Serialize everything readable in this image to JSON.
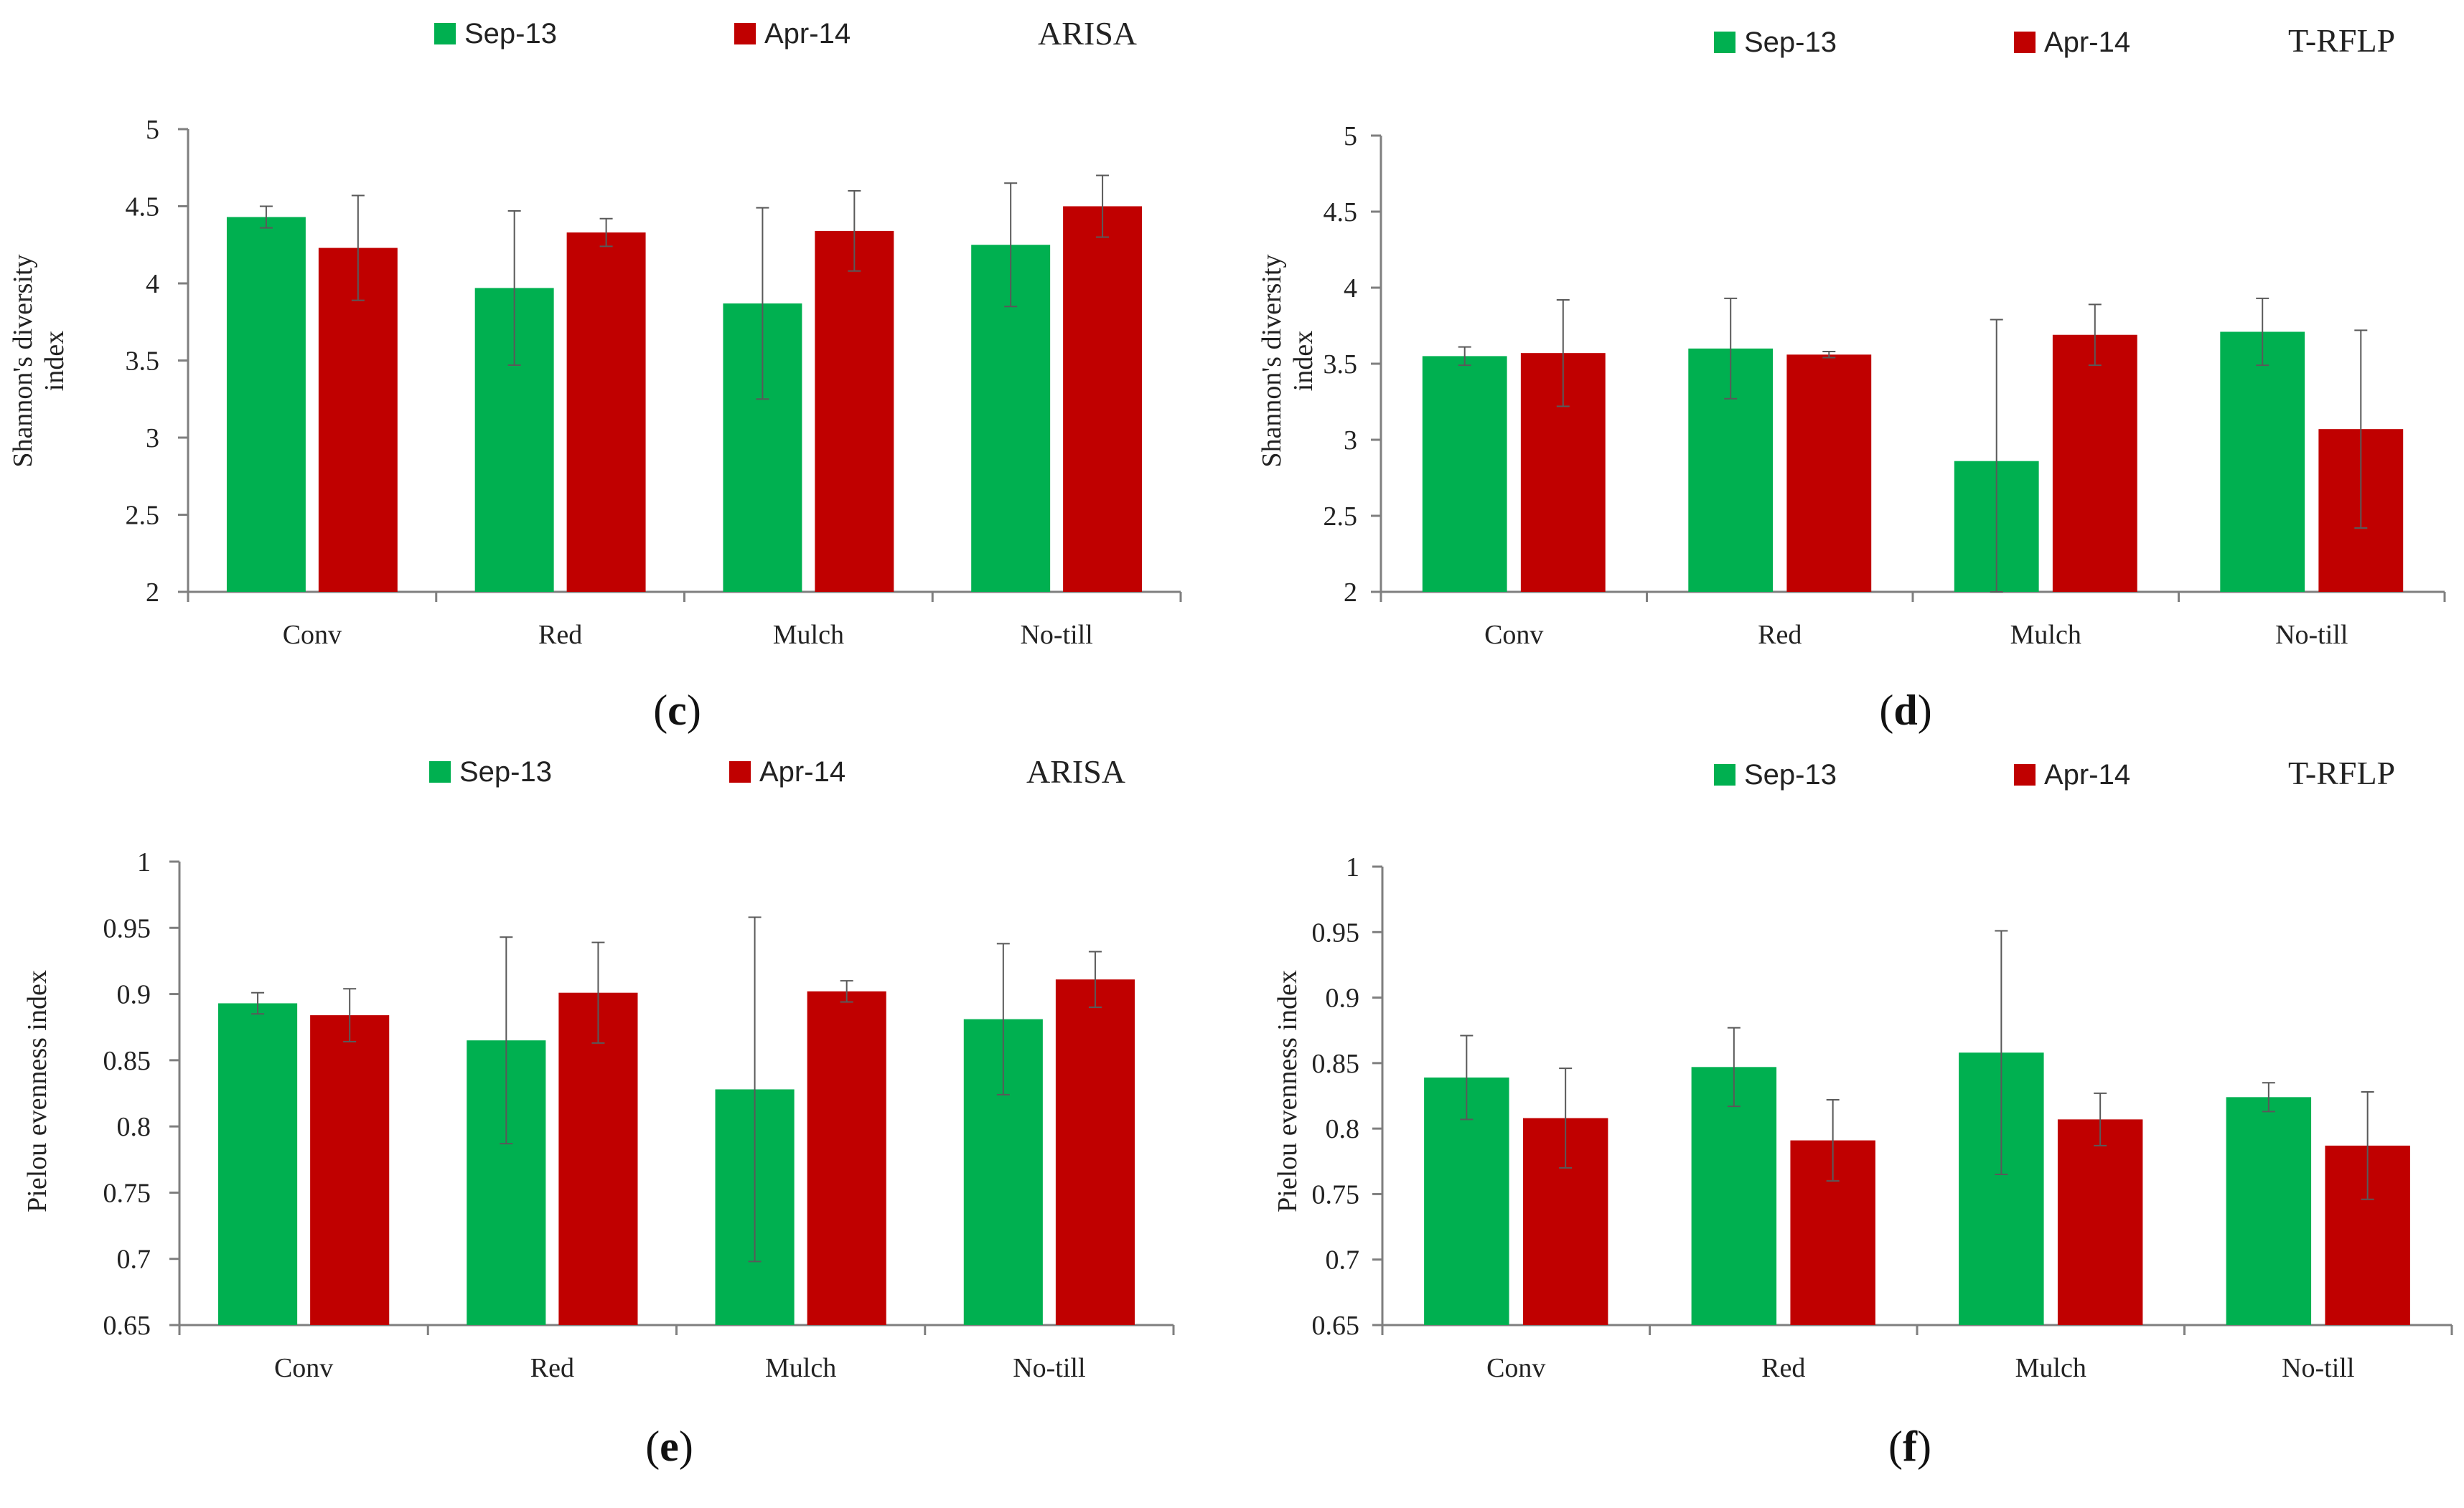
{
  "colors": {
    "sep": "#00b050",
    "apr": "#c00000",
    "axis": "#7f7f7f",
    "error": "#595959"
  },
  "chart_data": [
    {
      "id": "c",
      "type": "bar",
      "method": "ARISA",
      "caption": "c",
      "ylabel": [
        "Shannon's diversity",
        "index"
      ],
      "ylim": [
        2,
        5
      ],
      "ticks": [
        "2",
        "2.5",
        "3",
        "3.5",
        "4",
        "4.5",
        "5"
      ],
      "categories": [
        "Conv",
        "Red",
        "Mulch",
        "No-till"
      ],
      "series": [
        {
          "name": "Sep-13",
          "values": [
            4.43,
            3.97,
            3.87,
            4.25
          ],
          "errors": [
            0.07,
            0.5,
            0.62,
            0.4
          ]
        },
        {
          "name": "Apr-14",
          "values": [
            4.23,
            4.33,
            4.34,
            4.5
          ],
          "errors": [
            0.34,
            0.09,
            0.26,
            0.2
          ]
        }
      ]
    },
    {
      "id": "d",
      "type": "bar",
      "method": "T-RFLP",
      "caption": "d",
      "ylabel": [
        "Shannon's diversity",
        "index"
      ],
      "ylim": [
        2,
        5
      ],
      "ticks": [
        "2",
        "2.5",
        "3",
        "3.5",
        "4",
        "4.5",
        "5"
      ],
      "categories": [
        "Conv",
        "Red",
        "Mulch",
        "No-till"
      ],
      "series": [
        {
          "name": "Sep-13",
          "values": [
            3.55,
            3.6,
            2.86,
            3.71
          ],
          "errors": [
            0.06,
            0.33,
            0.93,
            0.22
          ]
        },
        {
          "name": "Apr-14",
          "values": [
            3.57,
            3.56,
            3.69,
            3.07
          ],
          "errors": [
            0.35,
            0.02,
            0.2,
            0.65
          ]
        }
      ]
    },
    {
      "id": "e",
      "type": "bar",
      "method": "ARISA",
      "caption": "e",
      "ylabel": [
        "Pielou evenness index"
      ],
      "ylim": [
        0.65,
        1
      ],
      "ticks": [
        "0.65",
        "0.7",
        "0.75",
        "0.8",
        "0.85",
        "0.9",
        "0.95",
        "1"
      ],
      "categories": [
        "Conv",
        "Red",
        "Mulch",
        "No-till"
      ],
      "series": [
        {
          "name": "Sep-13",
          "values": [
            0.893,
            0.865,
            0.828,
            0.881
          ],
          "errors": [
            0.008,
            0.078,
            0.13,
            0.057
          ]
        },
        {
          "name": "Apr-14",
          "values": [
            0.884,
            0.901,
            0.902,
            0.911
          ],
          "errors": [
            0.02,
            0.038,
            0.008,
            0.021
          ]
        }
      ]
    },
    {
      "id": "f",
      "type": "bar",
      "method": "T-RFLP",
      "caption": "f",
      "ylabel": [
        "Pielou evenness index"
      ],
      "ylim": [
        0.65,
        1
      ],
      "ticks": [
        "0.65",
        "0.7",
        "0.75",
        "0.8",
        "0.85",
        "0.9",
        "0.95",
        "1"
      ],
      "categories": [
        "Conv",
        "Red",
        "Mulch",
        "No-till"
      ],
      "series": [
        {
          "name": "Sep-13",
          "values": [
            0.839,
            0.847,
            0.858,
            0.824
          ],
          "errors": [
            0.032,
            0.03,
            0.093,
            0.011
          ]
        },
        {
          "name": "Apr-14",
          "values": [
            0.808,
            0.791,
            0.807,
            0.787
          ],
          "errors": [
            0.038,
            0.031,
            0.02,
            0.041
          ]
        }
      ]
    }
  ]
}
